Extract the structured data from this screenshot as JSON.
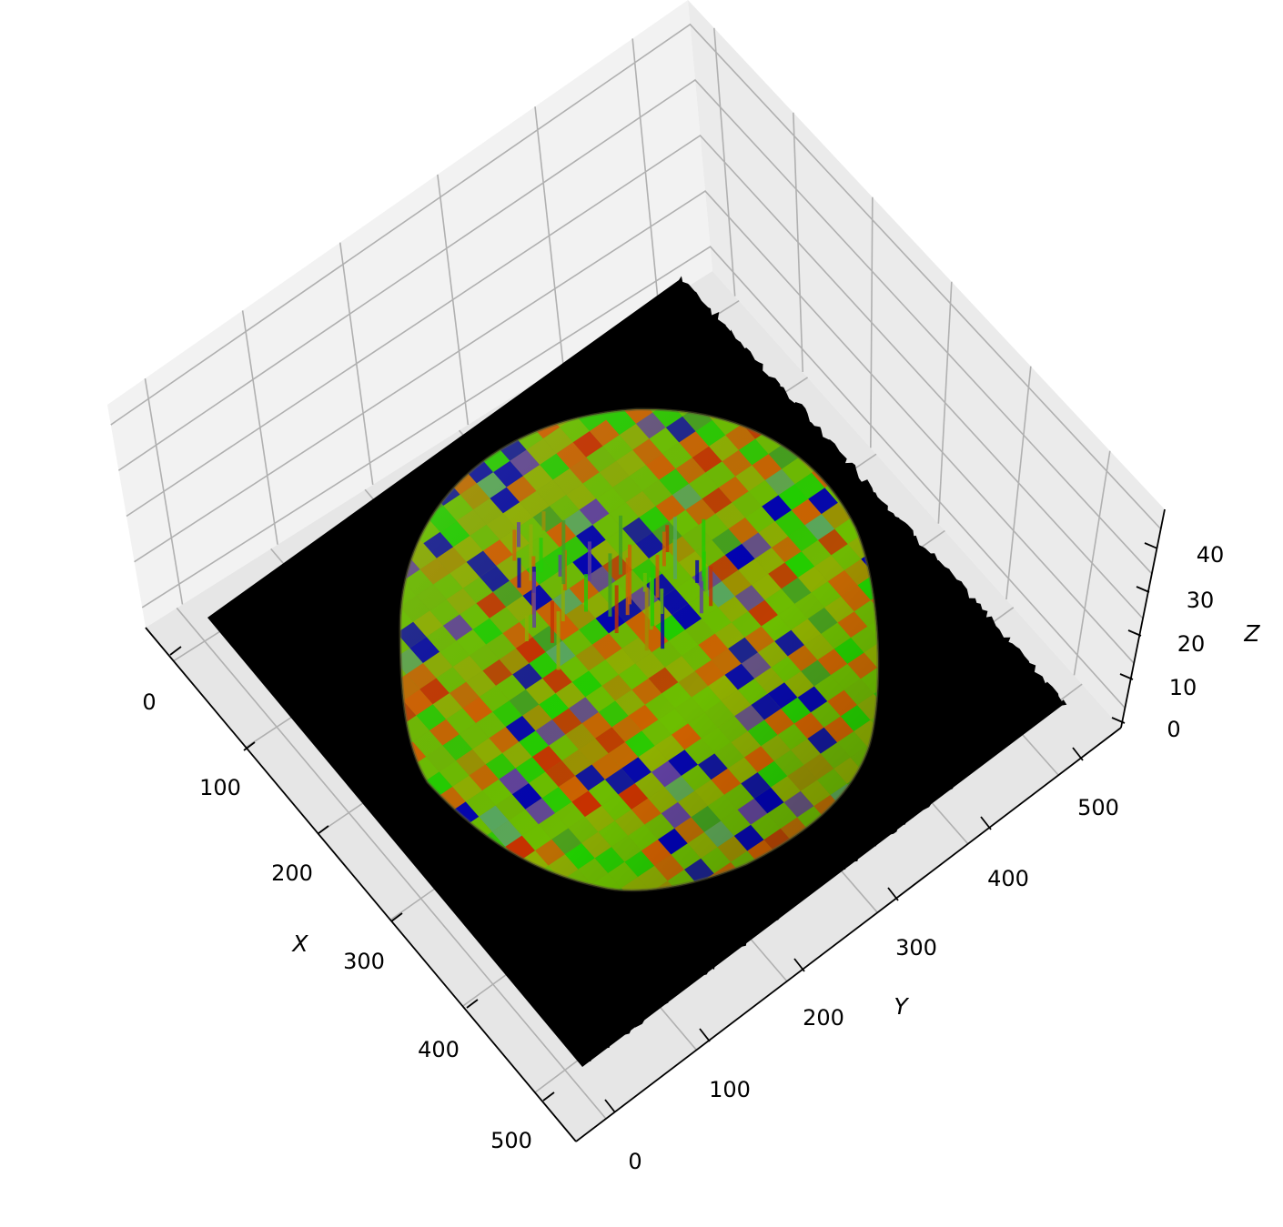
{
  "chart_data": {
    "type": "surface3d",
    "title": "",
    "xlabel": "X",
    "ylabel": "Y",
    "zlabel": "Z",
    "x_ticks": [
      "0",
      "100",
      "200",
      "300",
      "400",
      "500"
    ],
    "y_ticks": [
      "0",
      "100",
      "200",
      "300",
      "400",
      "500"
    ],
    "z_ticks": [
      "0",
      "10",
      "20",
      "30",
      "40"
    ],
    "xlim": [
      0,
      530
    ],
    "ylim": [
      0,
      530
    ],
    "zlim": [
      0,
      45
    ],
    "grid": true,
    "surface": {
      "description_of_data": "Black flat base plane (z≈0) with a textured hemispherical dome centered near x≈265, y≈265",
      "dome_center": [
        265,
        265
      ],
      "dome_radius": 190,
      "dome_peak_z": 42,
      "base_z": 0
    },
    "colors": {
      "pane": "#f2f2f2",
      "pane_side": "#ebebeb",
      "grid": "#b0b0b0",
      "base": "#000000",
      "dome_palette": [
        "#6bbf00",
        "#8fb000",
        "#0000b4",
        "#d06000",
        "#c83000",
        "#20d000",
        "#58a860",
        "#6040a0",
        "#a09000",
        "#40a020"
      ]
    }
  }
}
